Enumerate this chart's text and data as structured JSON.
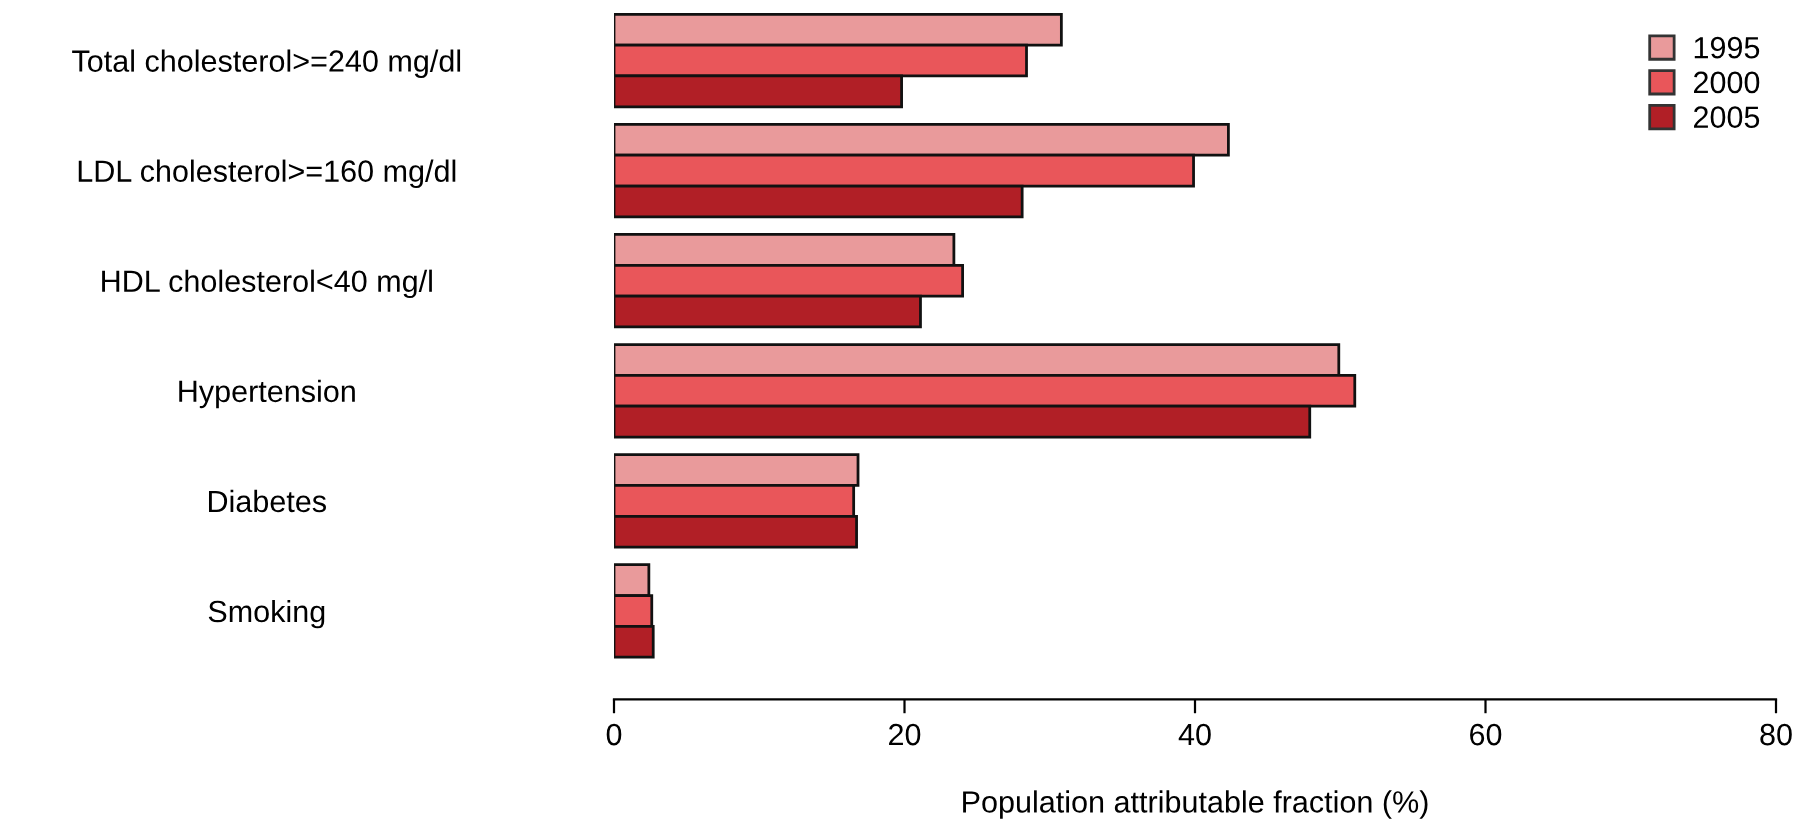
{
  "chart_data": {
    "type": "bar",
    "orientation": "horizontal",
    "xlabel": "Population attributable fraction (%)",
    "categories": [
      "Total cholesterol>=240 mg/dl",
      "LDL cholesterol>=160 mg/dl",
      "HDL cholesterol<40 mg/l",
      "Hypertension",
      "Diabetes",
      "Smoking"
    ],
    "series": [
      {
        "name": "1995",
        "color": "#e99a9b",
        "values": [
          30.8,
          42.3,
          23.4,
          49.9,
          16.8,
          2.4
        ]
      },
      {
        "name": "2000",
        "color": "#e9565a",
        "values": [
          28.4,
          39.9,
          24.0,
          51.0,
          16.5,
          2.6
        ]
      },
      {
        "name": "2005",
        "color": "#b11f26",
        "values": [
          19.8,
          28.1,
          21.1,
          47.9,
          16.7,
          2.7
        ]
      }
    ],
    "xlim": [
      0,
      80
    ],
    "xticks": [
      0,
      20,
      40,
      60,
      80
    ],
    "grid": false,
    "legend": "top right"
  }
}
